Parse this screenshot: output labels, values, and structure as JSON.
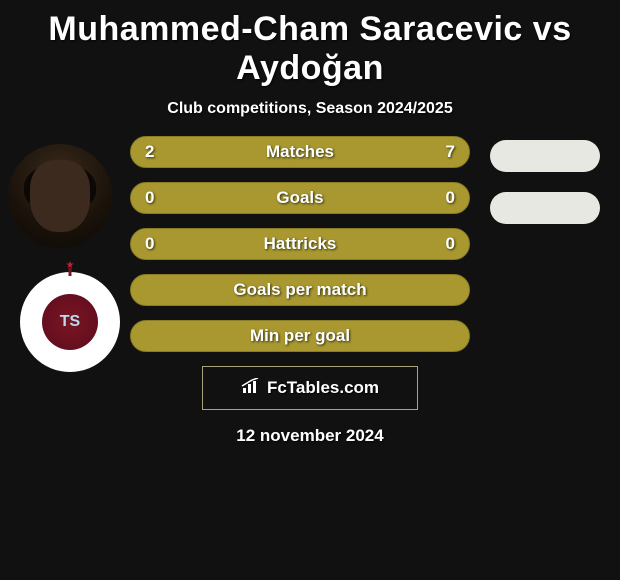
{
  "title": "Muhammed-Cham Saracevic vs Aydoğan",
  "subtitle": "Club competitions, Season 2024/2025",
  "date": "12 november 2024",
  "watermark_text": "FcTables.com",
  "colors": {
    "background": "#111111",
    "primary_olive": "#a8982f",
    "olive_border": "#8a7c22",
    "pill_white": "#e8e8e2",
    "text": "#ffffff"
  },
  "bars": [
    {
      "label": "Matches",
      "left": "2",
      "right": "7",
      "left_pct": 22,
      "right_pct": 78,
      "fill_left": "#a8982f",
      "fill_right": "#a8982f",
      "border": "#8a7c22"
    },
    {
      "label": "Goals",
      "left": "0",
      "right": "0",
      "left_pct": 0,
      "right_pct": 0,
      "fill_left": "#a8982f",
      "fill_right": "#a8982f",
      "border": "#8a7c22"
    },
    {
      "label": "Hattricks",
      "left": "0",
      "right": "0",
      "left_pct": 0,
      "right_pct": 0,
      "fill_left": "#a8982f",
      "fill_right": "#a8982f",
      "border": "#8a7c22"
    },
    {
      "label": "Goals per match",
      "left": "",
      "right": "",
      "left_pct": 0,
      "right_pct": 0,
      "fill_left": "#a8982f",
      "fill_right": "#a8982f",
      "border": "#8a7c22"
    },
    {
      "label": "Min per goal",
      "left": "",
      "right": "",
      "left_pct": 0,
      "right_pct": 0,
      "fill_left": "#a8982f",
      "fill_right": "#a8982f",
      "border": "#8a7c22"
    }
  ],
  "club_badge_letters": "TS"
}
